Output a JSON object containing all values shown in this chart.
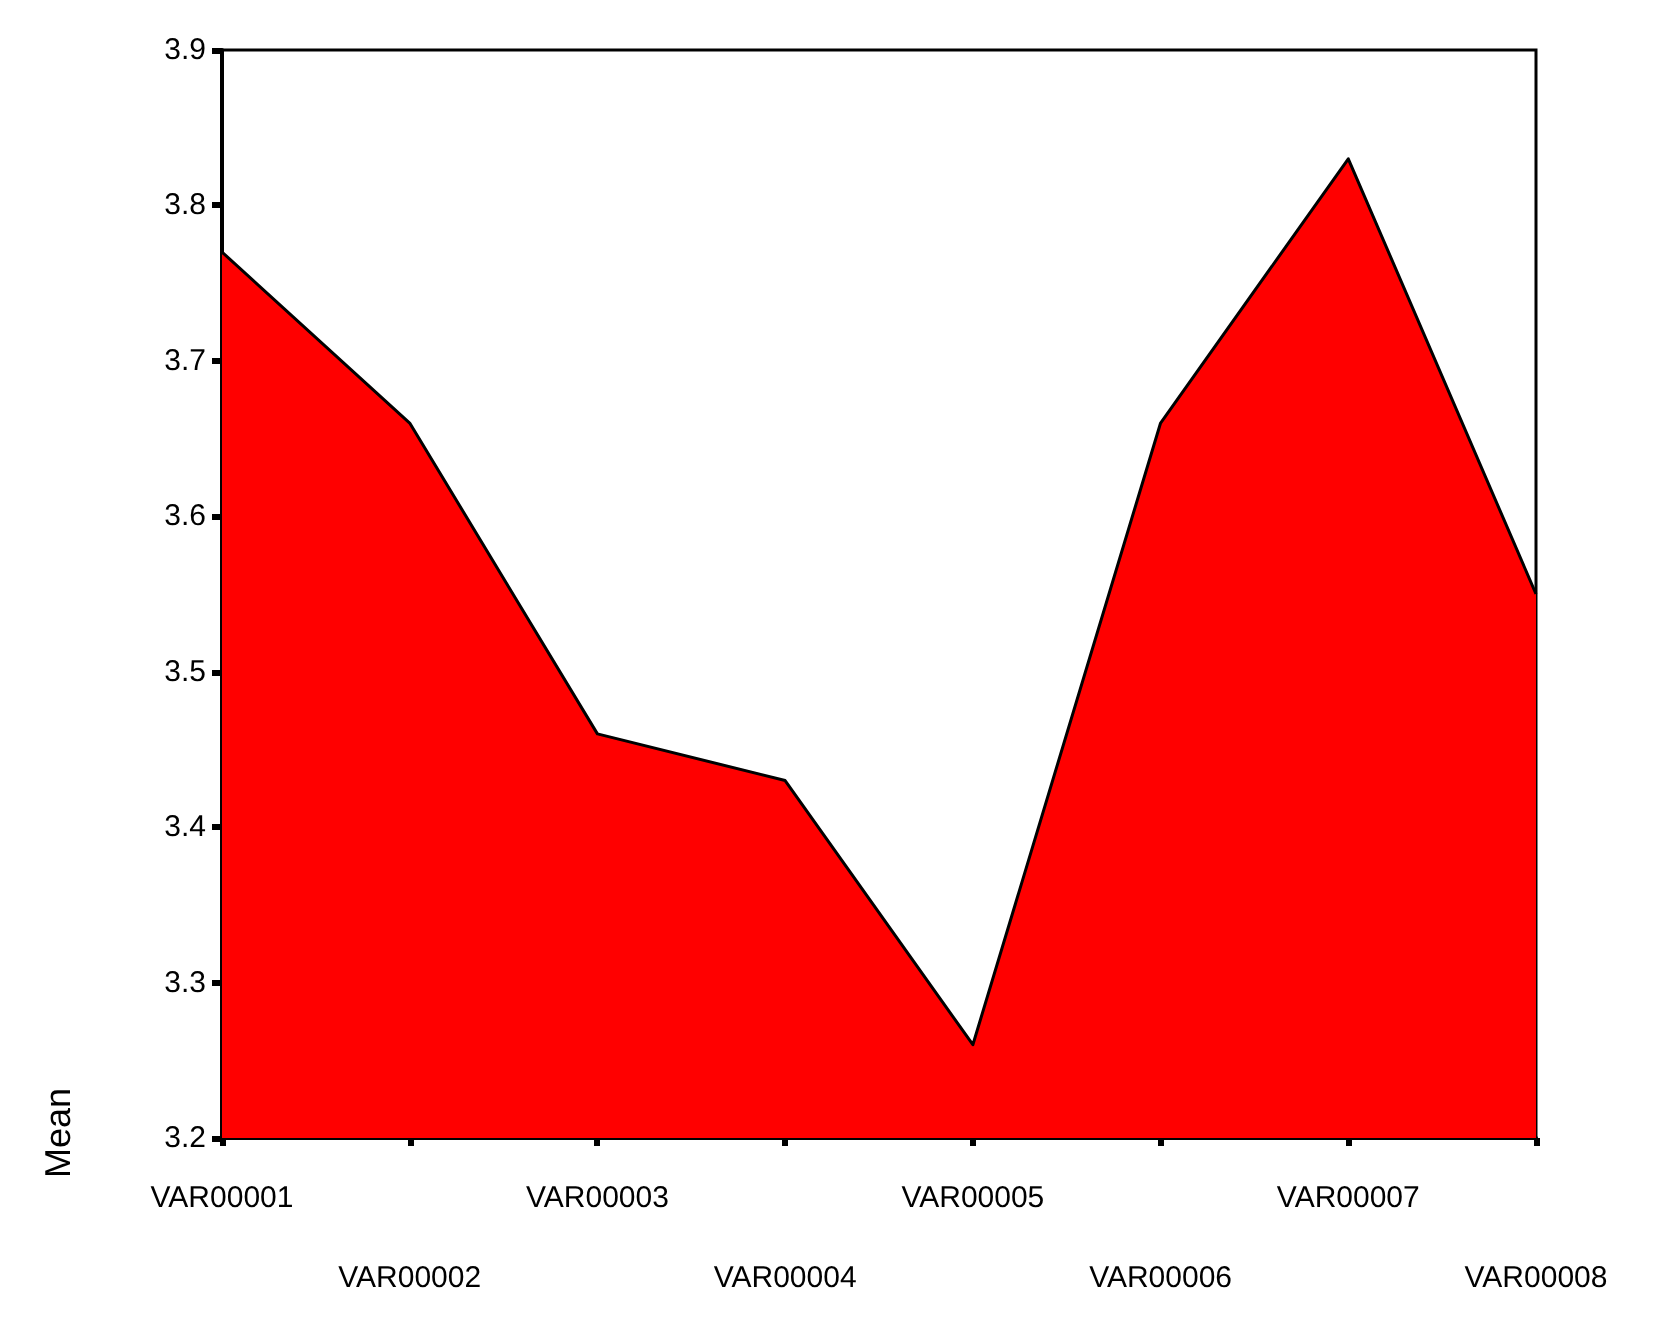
{
  "chart_data": {
    "type": "area",
    "ylabel": "Mean",
    "categories": [
      "VAR00001",
      "VAR00002",
      "VAR00003",
      "VAR00004",
      "VAR00005",
      "VAR00006",
      "VAR00007",
      "VAR00008"
    ],
    "series": [
      {
        "color": "#ff0000",
        "values": [
          3.77,
          3.66,
          3.46,
          3.43,
          3.26,
          3.66,
          3.83,
          3.55
        ]
      }
    ],
    "ylim": [
      3.2,
      3.9
    ],
    "yticks": [
      3.2,
      3.3,
      3.4,
      3.5,
      3.6,
      3.7,
      3.8,
      3.9
    ],
    "grid": false
  }
}
